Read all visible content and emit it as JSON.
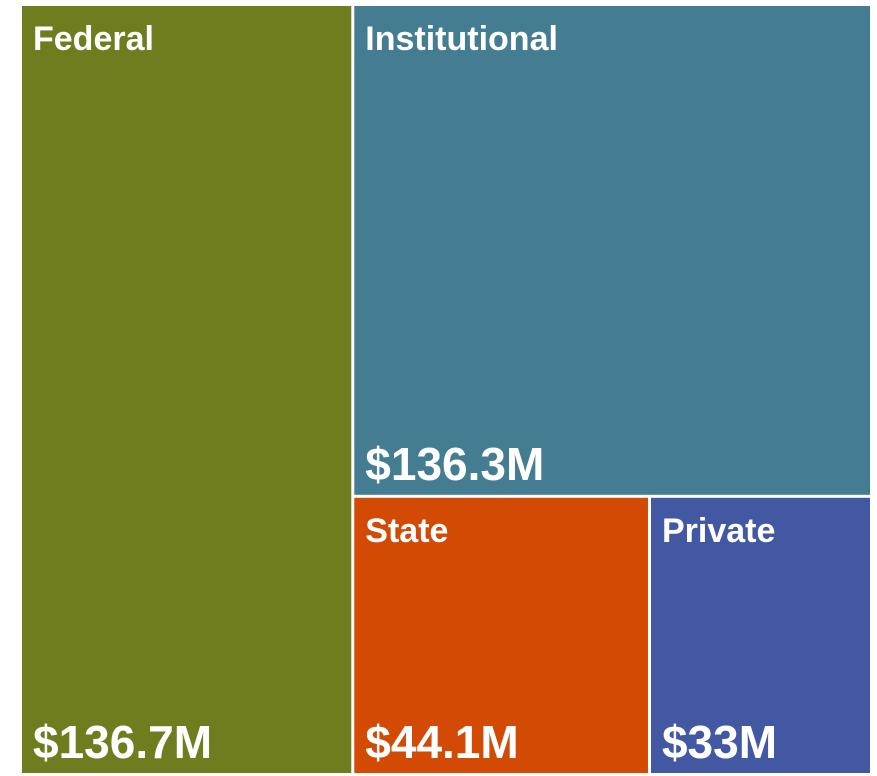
{
  "chart_data": {
    "type": "treemap",
    "categories": [
      "Federal",
      "Institutional",
      "State",
      "Private"
    ],
    "values": [
      136.7,
      136.3,
      44.1,
      33
    ],
    "value_labels": [
      "$136.7M",
      "$136.3M",
      "$44.1M",
      "$33M"
    ],
    "colors": [
      "#6f7d1f",
      "#447d92",
      "#d24a04",
      "#4358a3"
    ]
  }
}
